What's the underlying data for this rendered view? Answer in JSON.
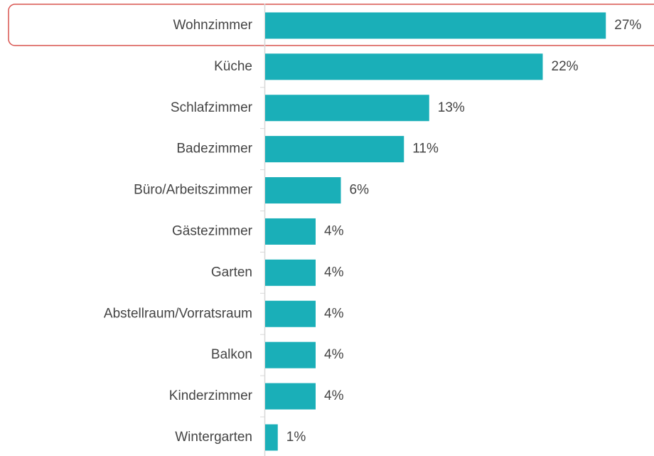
{
  "chart_data": {
    "type": "bar",
    "orientation": "horizontal",
    "color": "#1aafb8",
    "categories": [
      "Wohnzimmer",
      "Küche",
      "Schlafzimmer",
      "Badezimmer",
      "Büro/Arbeitszimmer",
      "Gästezimmer",
      "Garten",
      "Abstellraum/Vorratsraum",
      "Balkon",
      "Kinderzimmer",
      "Wintergarten"
    ],
    "values": [
      27,
      22,
      13,
      11,
      6,
      4,
      4,
      4,
      4,
      4,
      1
    ],
    "value_labels": [
      "27%",
      "22%",
      "13%",
      "11%",
      "6%",
      "4%",
      "4%",
      "4%",
      "4%",
      "4%",
      "1%"
    ]
  }
}
